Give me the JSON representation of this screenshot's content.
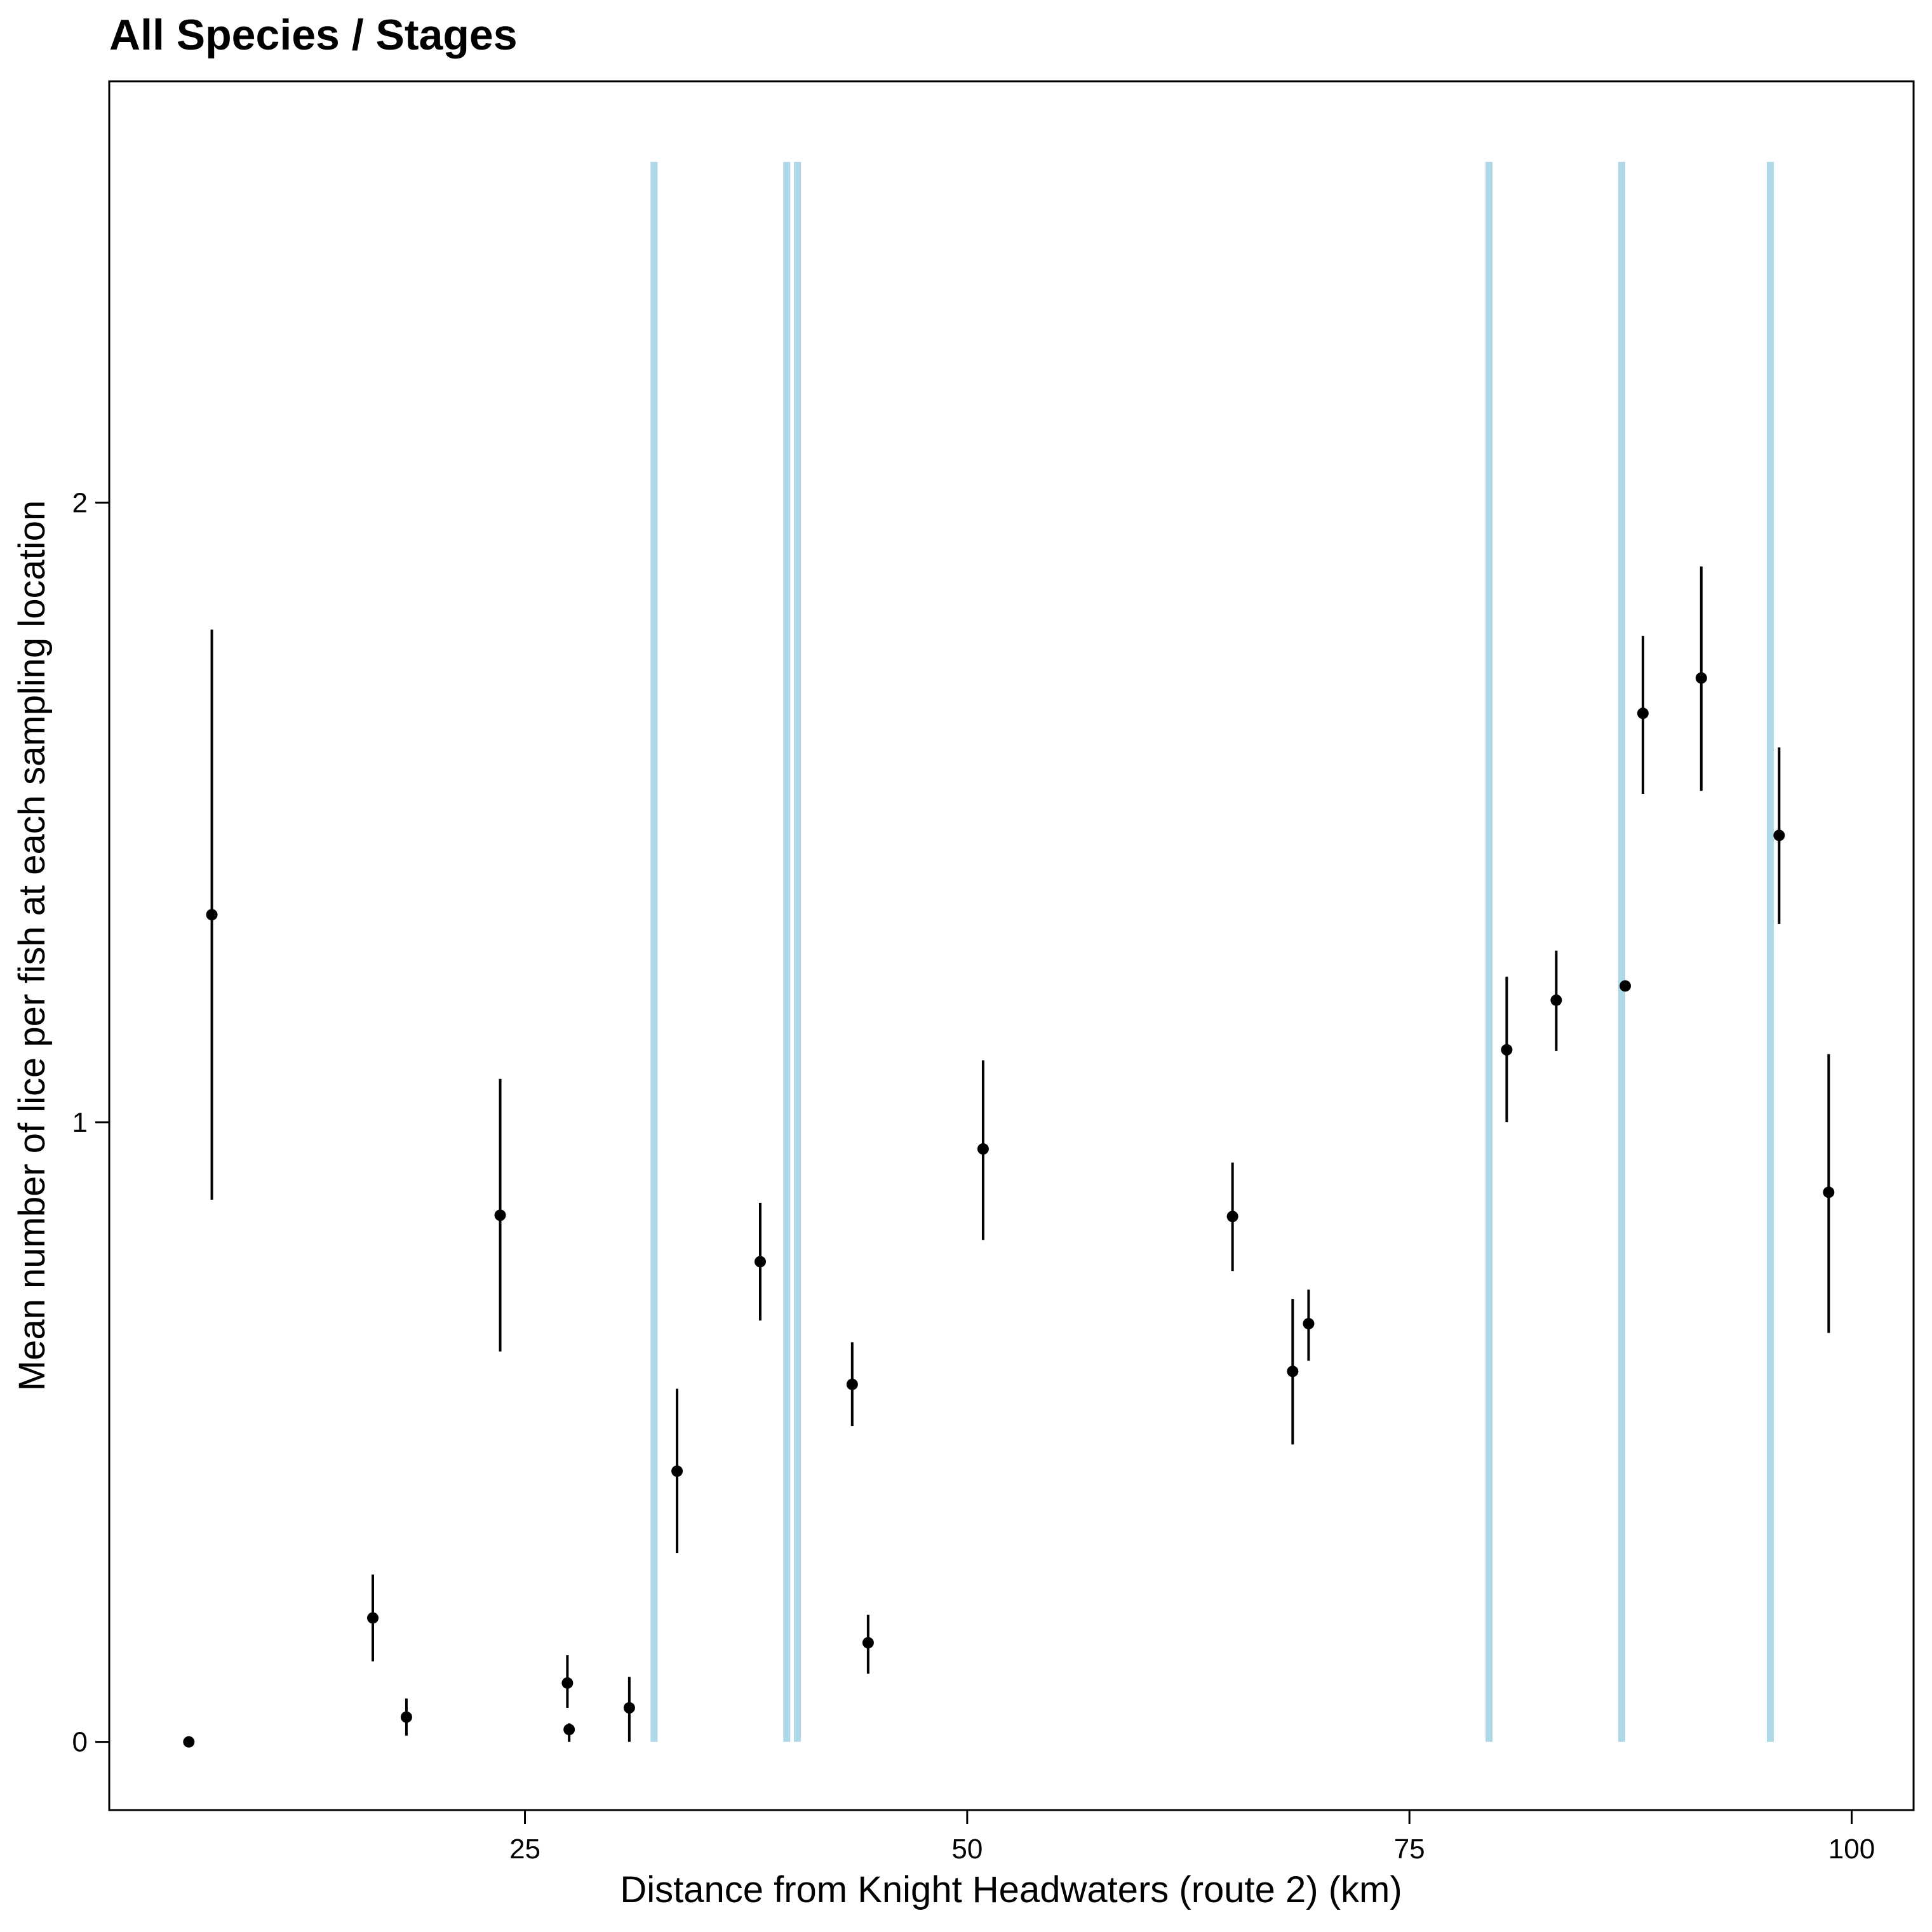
{
  "chart_data": {
    "type": "scatter",
    "title": "All Species / Stages",
    "xlabel": "Distance from Knight Headwaters (route 2) (km)",
    "ylabel": "Mean number of lice per fish at each sampling location",
    "xlim": [
      1.5,
      103.5
    ],
    "ylim": [
      -0.11,
      2.68
    ],
    "x_ticks": [
      25,
      50,
      75,
      100
    ],
    "y_ticks": [
      0,
      1,
      2
    ],
    "grid": false,
    "legend": "none",
    "reference_lines": {
      "x": [
        32.3,
        39.8,
        40.4,
        79.5,
        87.0,
        95.4
      ],
      "y_range": [
        0,
        2.55
      ],
      "color": "#ADD8E6"
    },
    "point_color": "#000000",
    "points": [
      {
        "x": 6.0,
        "y": 0.0,
        "lo": 0.0,
        "hi": 0.0
      },
      {
        "x": 7.3,
        "y": 1.335,
        "lo": 0.875,
        "hi": 1.795
      },
      {
        "x": 16.4,
        "y": 0.2,
        "lo": 0.13,
        "hi": 0.27
      },
      {
        "x": 18.3,
        "y": 0.04,
        "lo": 0.01,
        "hi": 0.07
      },
      {
        "x": 23.6,
        "y": 0.85,
        "lo": 0.63,
        "hi": 1.07
      },
      {
        "x": 27.4,
        "y": 0.095,
        "lo": 0.055,
        "hi": 0.14
      },
      {
        "x": 27.5,
        "y": 0.02,
        "lo": 0.0,
        "hi": 0.03
      },
      {
        "x": 30.9,
        "y": 0.055,
        "lo": 0.0,
        "hi": 0.105
      },
      {
        "x": 33.6,
        "y": 0.437,
        "lo": 0.305,
        "hi": 0.57
      },
      {
        "x": 38.3,
        "y": 0.775,
        "lo": 0.68,
        "hi": 0.87
      },
      {
        "x": 43.5,
        "y": 0.577,
        "lo": 0.51,
        "hi": 0.645
      },
      {
        "x": 44.4,
        "y": 0.16,
        "lo": 0.11,
        "hi": 0.205
      },
      {
        "x": 50.9,
        "y": 0.957,
        "lo": 0.81,
        "hi": 1.1
      },
      {
        "x": 65.0,
        "y": 0.848,
        "lo": 0.76,
        "hi": 0.935
      },
      {
        "x": 68.4,
        "y": 0.598,
        "lo": 0.48,
        "hi": 0.715
      },
      {
        "x": 69.3,
        "y": 0.675,
        "lo": 0.615,
        "hi": 0.73
      },
      {
        "x": 80.5,
        "y": 1.117,
        "lo": 1.0,
        "hi": 1.235
      },
      {
        "x": 83.3,
        "y": 1.197,
        "lo": 1.115,
        "hi": 1.277
      },
      {
        "x": 87.2,
        "y": 1.22,
        "lo": 1.22,
        "hi": 1.22
      },
      {
        "x": 88.2,
        "y": 1.66,
        "lo": 1.53,
        "hi": 1.785
      },
      {
        "x": 91.5,
        "y": 1.717,
        "lo": 1.535,
        "hi": 1.897
      },
      {
        "x": 95.9,
        "y": 1.463,
        "lo": 1.32,
        "hi": 1.605
      },
      {
        "x": 98.7,
        "y": 0.887,
        "lo": 0.66,
        "hi": 1.11
      }
    ]
  }
}
